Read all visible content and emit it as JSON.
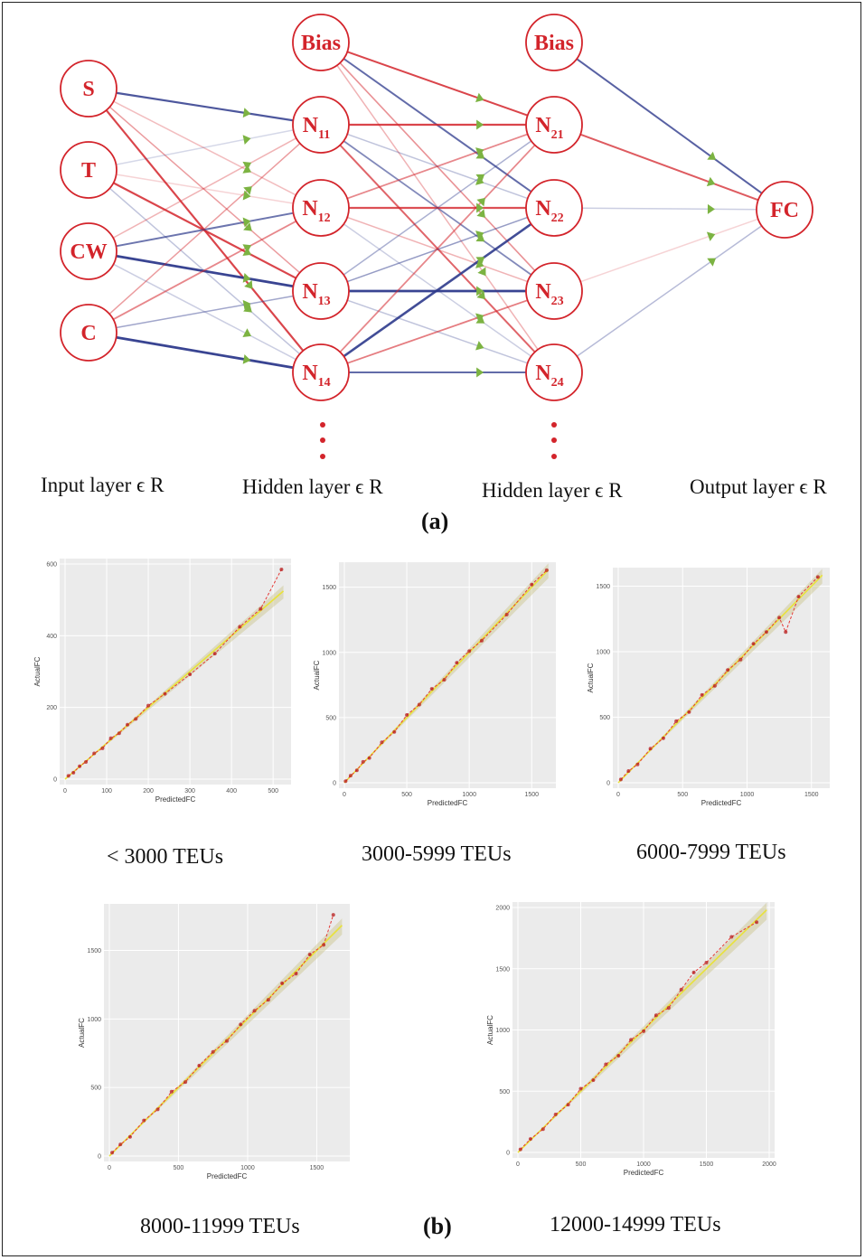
{
  "network": {
    "input_nodes": [
      "S",
      "T",
      "CW",
      "C"
    ],
    "hidden1_nodes": [
      {
        "base": "N",
        "sub": "11"
      },
      {
        "base": "N",
        "sub": "12"
      },
      {
        "base": "N",
        "sub": "13"
      },
      {
        "base": "N",
        "sub": "14"
      }
    ],
    "hidden2_nodes": [
      {
        "base": "N",
        "sub": "21"
      },
      {
        "base": "N",
        "sub": "22"
      },
      {
        "base": "N",
        "sub": "23"
      },
      {
        "base": "N",
        "sub": "24"
      }
    ],
    "bias_label": "Bias",
    "output_node": "FC",
    "layer_labels": [
      "Input layer ϵ R",
      "Hidden layer ϵ R",
      "Hidden layer ϵ R",
      "Output layer ϵ R"
    ],
    "colors": {
      "node": "#d3242b",
      "positive_weight": "#d3242b",
      "negative_weight": "#2e3a8c",
      "arrowhead": "#7cb342"
    }
  },
  "panel_labels": {
    "a": "(a)",
    "b": "(b)"
  },
  "chart_data": [
    {
      "type": "scatter",
      "caption": "< 3000 TEUs",
      "xlabel": "PredictedFC",
      "ylabel": "ActualFC",
      "xlim": [
        0,
        530
      ],
      "ylim": [
        0,
        600
      ],
      "xticks": [
        0,
        100,
        200,
        300,
        400,
        500
      ],
      "yticks": [
        0,
        200,
        400,
        600
      ],
      "series": [
        {
          "x": [
            8,
            20,
            35,
            50,
            70,
            90,
            110,
            130,
            150,
            170,
            200,
            240,
            300,
            360,
            420,
            470,
            520
          ],
          "y": [
            9,
            18,
            36,
            48,
            72,
            86,
            114,
            128,
            152,
            168,
            205,
            238,
            292,
            350,
            425,
            475,
            585
          ]
        }
      ],
      "grid": true
    },
    {
      "type": "scatter",
      "caption": "3000-5999 TEUs",
      "xlabel": "PredictedFC",
      "ylabel": "ActualFC",
      "xlim": [
        0,
        1650
      ],
      "ylim": [
        0,
        1650
      ],
      "xticks": [
        0,
        500,
        1000,
        1500
      ],
      "yticks": [
        0,
        500,
        1000,
        1500
      ],
      "series": [
        {
          "x": [
            10,
            50,
            100,
            150,
            200,
            300,
            400,
            500,
            600,
            700,
            800,
            900,
            1000,
            1100,
            1300,
            1500,
            1620
          ],
          "y": [
            12,
            55,
            95,
            160,
            190,
            310,
            390,
            520,
            600,
            720,
            790,
            920,
            1010,
            1090,
            1290,
            1520,
            1630
          ]
        }
      ],
      "grid": true
    },
    {
      "type": "scatter",
      "caption": "6000-7999 TEUs",
      "xlabel": "PredictedFC",
      "ylabel": "ActualFC",
      "xlim": [
        0,
        1600
      ],
      "ylim": [
        0,
        1600
      ],
      "xticks": [
        0,
        500,
        1000,
        1500
      ],
      "yticks": [
        0,
        500,
        1000,
        1500
      ],
      "series": [
        {
          "x": [
            20,
            80,
            150,
            250,
            350,
            450,
            550,
            650,
            750,
            850,
            950,
            1050,
            1150,
            1250,
            1300,
            1400,
            1550
          ],
          "y": [
            25,
            90,
            140,
            260,
            340,
            470,
            540,
            670,
            740,
            860,
            940,
            1060,
            1150,
            1260,
            1150,
            1420,
            1570
          ]
        }
      ],
      "grid": true
    },
    {
      "type": "scatter",
      "caption": "8000-11999 TEUs",
      "xlabel": "PredictedFC",
      "ylabel": "ActualFC",
      "xlim": [
        0,
        1700
      ],
      "ylim": [
        0,
        1800
      ],
      "xticks": [
        0,
        500,
        1000,
        1500
      ],
      "yticks": [
        0,
        500,
        1000,
        1500
      ],
      "series": [
        {
          "x": [
            20,
            80,
            150,
            250,
            350,
            450,
            550,
            650,
            750,
            850,
            950,
            1050,
            1150,
            1250,
            1350,
            1450,
            1550,
            1620
          ],
          "y": [
            25,
            85,
            140,
            260,
            340,
            470,
            540,
            660,
            760,
            840,
            960,
            1060,
            1140,
            1260,
            1330,
            1470,
            1540,
            1760
          ]
        }
      ],
      "grid": true
    },
    {
      "type": "scatter",
      "caption": "12000-14999 TEUs",
      "xlabel": "PredictedFC",
      "ylabel": "ActualFC",
      "xlim": [
        0,
        2000
      ],
      "ylim": [
        0,
        2000
      ],
      "xticks": [
        0,
        500,
        1000,
        1500,
        2000
      ],
      "yticks": [
        0,
        500,
        1000,
        1500,
        2000
      ],
      "series": [
        {
          "x": [
            20,
            100,
            200,
            300,
            400,
            500,
            600,
            700,
            800,
            900,
            1000,
            1100,
            1200,
            1300,
            1400,
            1500,
            1700,
            1900
          ],
          "y": [
            25,
            110,
            190,
            310,
            390,
            520,
            590,
            720,
            790,
            920,
            990,
            1120,
            1180,
            1330,
            1470,
            1550,
            1760,
            1880
          ]
        }
      ],
      "grid": true
    }
  ]
}
